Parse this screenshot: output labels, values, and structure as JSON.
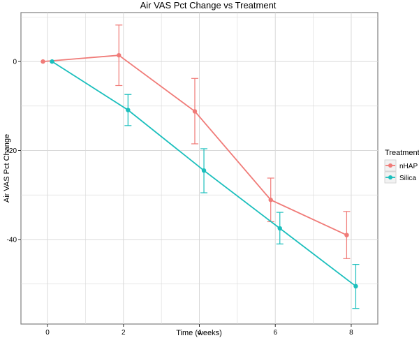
{
  "chart_data": {
    "type": "line",
    "title": "Air VAS Pct Change vs Treatment",
    "xlabel": "Time (weeks)",
    "ylabel": "Air VAS Pct Change",
    "xlim": [
      -0.7,
      8.7
    ],
    "ylim": [
      -59,
      11
    ],
    "xticks": [
      0,
      2,
      4,
      6,
      8
    ],
    "yticks": [
      0,
      -20,
      -40
    ],
    "grid": true,
    "legend": {
      "title": "Treatment",
      "position": "right"
    },
    "series": [
      {
        "name": "nHAP",
        "color": "#f07b78",
        "x": [
          -0.12,
          1.88,
          3.88,
          5.88,
          7.88
        ],
        "y": [
          0,
          1.4,
          -11.2,
          -31.1,
          -39.0
        ],
        "err_low": [
          0,
          -5.4,
          -18.5,
          -36.0,
          -44.3
        ],
        "err_high": [
          0,
          8.2,
          -3.8,
          -26.2,
          -33.7
        ]
      },
      {
        "name": "Silica",
        "color": "#1bbfbd",
        "x": [
          0.12,
          2.12,
          4.12,
          6.12,
          8.12
        ],
        "y": [
          0,
          -10.9,
          -24.5,
          -37.5,
          -50.5
        ],
        "err_low": [
          0,
          -14.4,
          -29.5,
          -41.0,
          -55.5
        ],
        "err_high": [
          0,
          -7.4,
          -19.6,
          -33.9,
          -45.6
        ]
      }
    ]
  }
}
